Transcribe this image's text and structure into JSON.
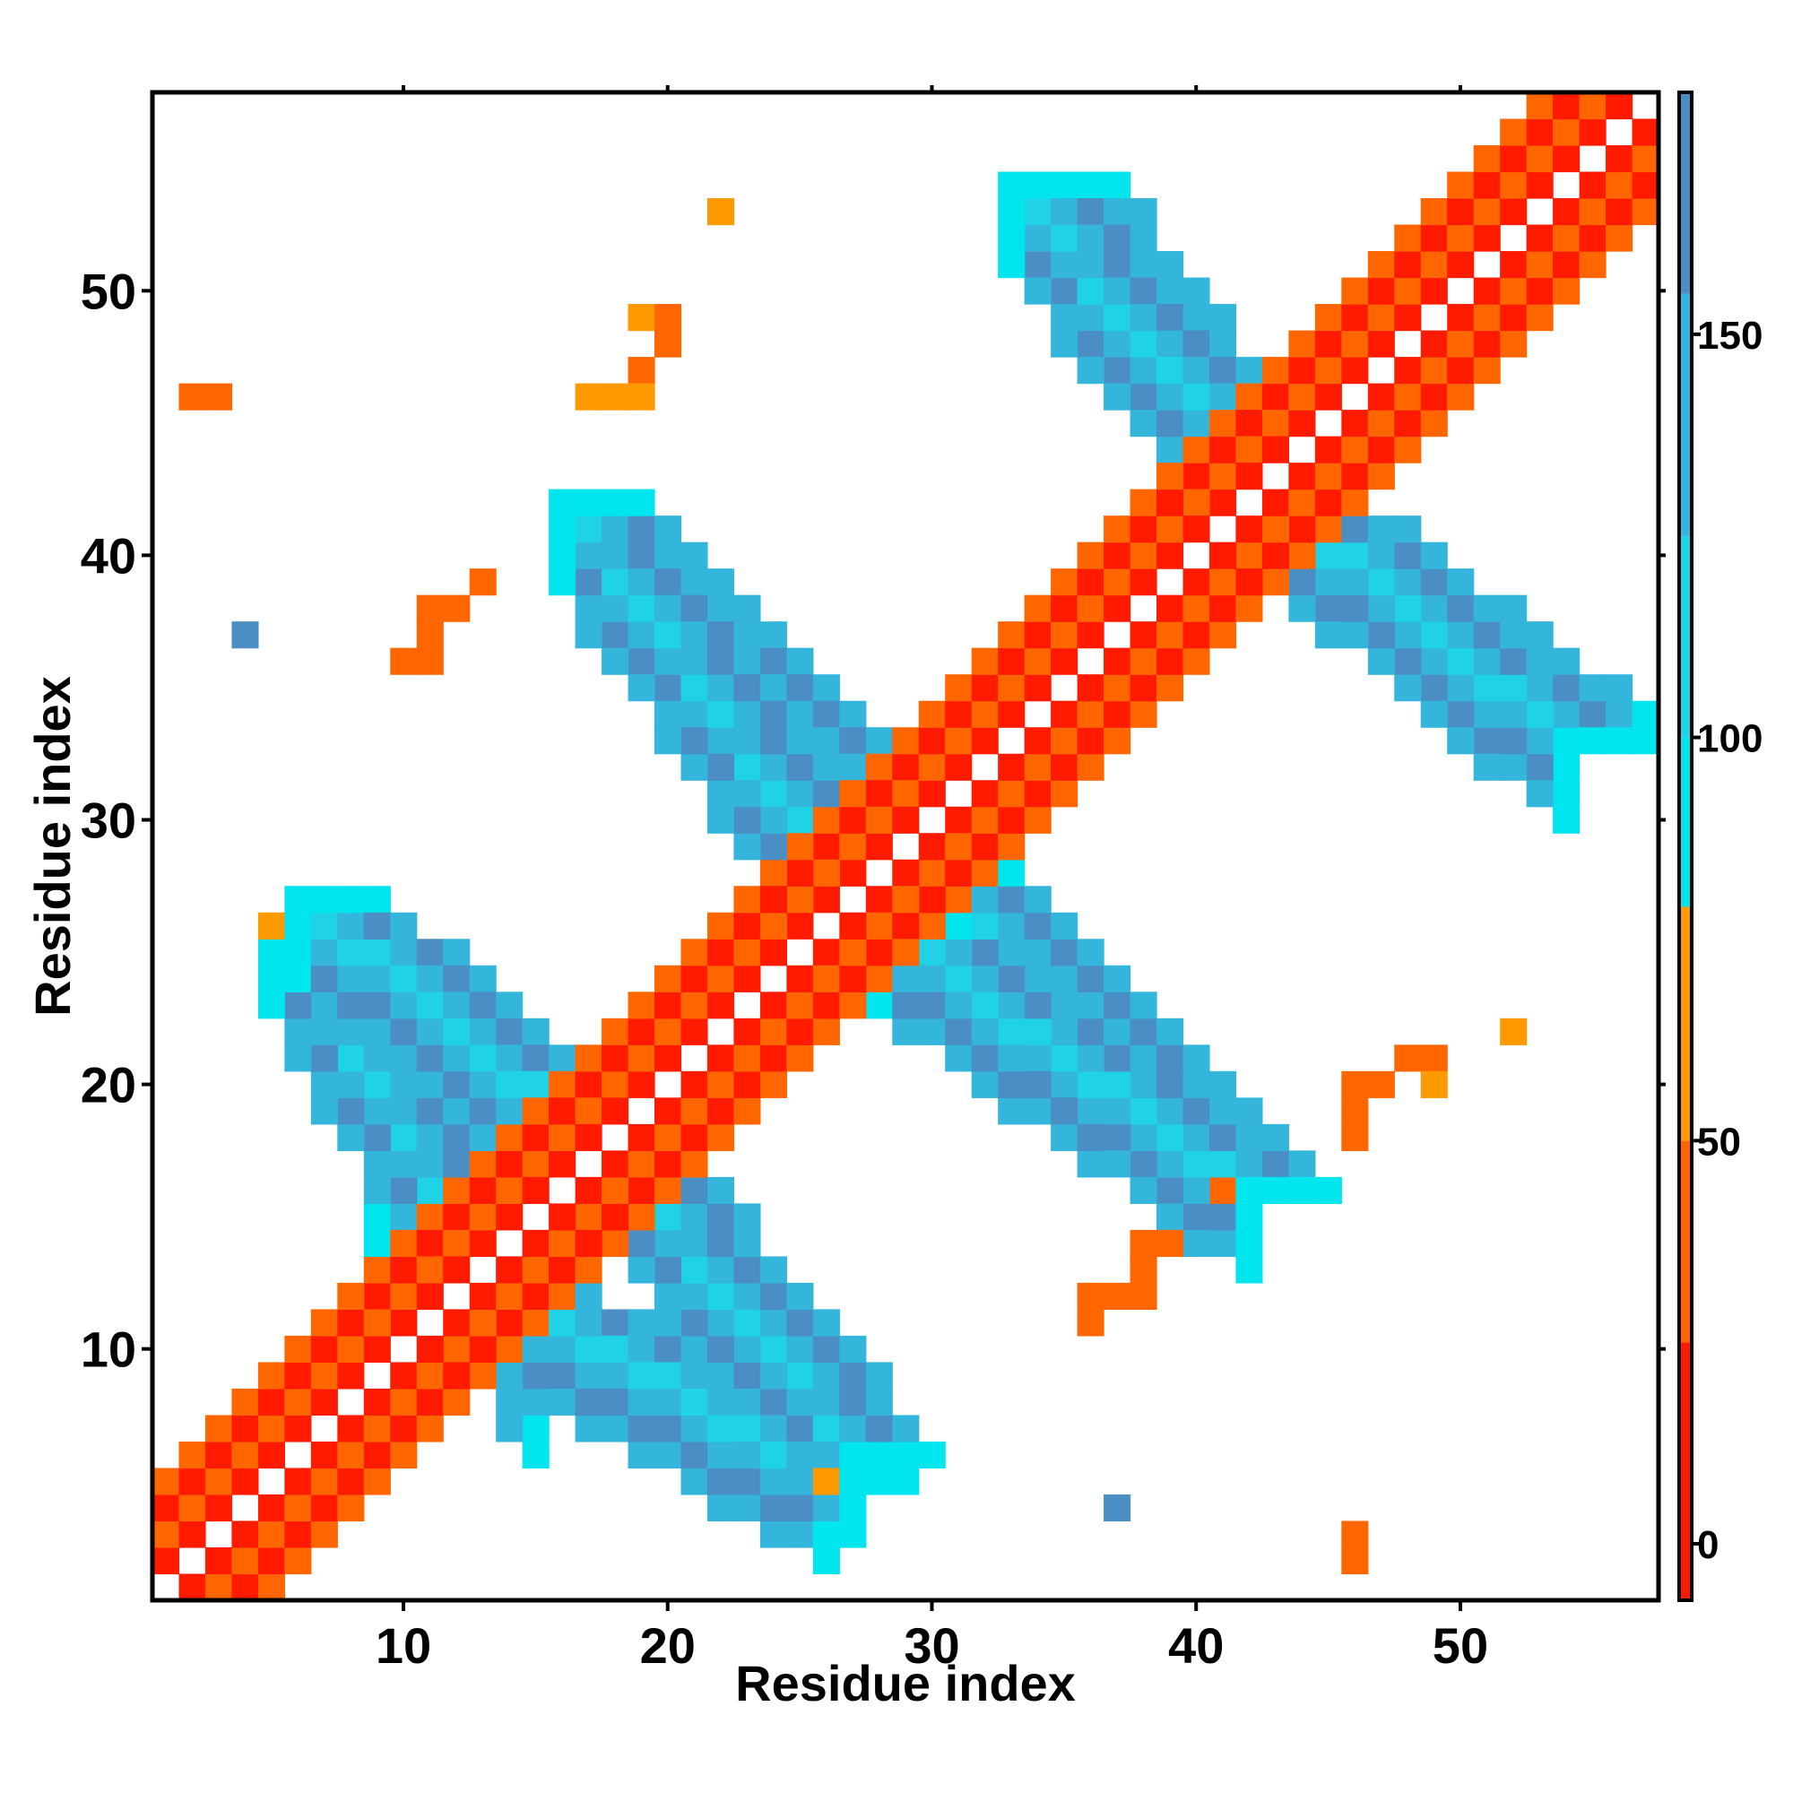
{
  "chart_data": {
    "type": "heatmap",
    "title": "",
    "xlabel": "Residue index",
    "ylabel": "Residue index",
    "xlim": [
      0.5,
      57.5
    ],
    "ylim": [
      0.5,
      57.5
    ],
    "x_ticks": [
      10,
      20,
      30,
      40,
      50
    ],
    "y_ticks": [
      10,
      20,
      30,
      40,
      50
    ],
    "grid": false,
    "legend": "none",
    "colorbar": {
      "placement": "right",
      "range": [
        -7,
        180
      ],
      "ticks": [
        0,
        50,
        100,
        150
      ],
      "bands": [
        {
          "from": -7,
          "to": 25,
          "color": "#ff1a00"
        },
        {
          "from": 25,
          "to": 50,
          "color": "#ff6600"
        },
        {
          "from": 50,
          "to": 79,
          "color": "#ff9900"
        },
        {
          "from": 79,
          "to": 100,
          "color": "#00e5ee"
        },
        {
          "from": 100,
          "to": 125,
          "color": "#1fd2e6"
        },
        {
          "from": 125,
          "to": 155,
          "color": "#33b5dc"
        },
        {
          "from": 155,
          "to": 180,
          "color": "#4a8ec4"
        },
        {
          "from": 180,
          "to": 187,
          "color": "#ffffff"
        }
      ]
    },
    "value_levels": {
      "red": 10,
      "orange": 40,
      "amber": 60,
      "cyan": 90,
      "lightblue": 115,
      "midblue": 140,
      "steelblue": 165
    },
    "diagonal_band": {
      "from": 1,
      "to": 57,
      "offsets": [
        {
          "d": 0,
          "level": "white"
        },
        {
          "d": 1,
          "level": "red"
        },
        {
          "d": 2,
          "level": "orange"
        },
        {
          "d": 3,
          "level": "red"
        },
        {
          "d": 4,
          "level": "orange"
        }
      ],
      "mid_gap": [
        16,
        18
      ]
    },
    "strands": [
      {
        "name": "",
        "start": [
          9,
          15
        ],
        "end": [
          26,
          5
        ],
        "width": 3
      },
      {
        "name": "",
        "start": [
          6,
          27
        ],
        "end": [
          18,
          17
        ],
        "width": 3
      },
      {
        "name": "",
        "start": [
          17,
          41
        ],
        "end": [
          28,
          30
        ],
        "width": 3
      },
      {
        "name": "",
        "start": [
          28,
          26
        ],
        "end": [
          42,
          16
        ],
        "width": 3
      },
      {
        "name": "",
        "start": [
          34,
          54
        ],
        "end": [
          42,
          43
        ],
        "width": 3
      },
      {
        "name": "",
        "start": [
          43,
          42
        ],
        "end": [
          54,
          33
        ],
        "width": 3
      }
    ],
    "isolated_cells": [
      {
        "x": 22,
        "y": 53,
        "level": "amber"
      },
      {
        "x": 19,
        "y": 49,
        "level": "amber"
      },
      {
        "x": 20,
        "y": 49,
        "level": "orange"
      },
      {
        "x": 20,
        "y": 48,
        "level": "orange"
      },
      {
        "x": 19,
        "y": 47,
        "level": "orange"
      },
      {
        "x": 17,
        "y": 46,
        "level": "amber"
      },
      {
        "x": 18,
        "y": 46,
        "level": "amber"
      },
      {
        "x": 19,
        "y": 46,
        "level": "amber"
      },
      {
        "x": 2,
        "y": 46,
        "level": "orange"
      },
      {
        "x": 3,
        "y": 46,
        "level": "orange"
      },
      {
        "x": 13,
        "y": 39,
        "level": "orange"
      },
      {
        "x": 11,
        "y": 38,
        "level": "orange"
      },
      {
        "x": 12,
        "y": 38,
        "level": "orange"
      },
      {
        "x": 11,
        "y": 37,
        "level": "orange"
      },
      {
        "x": 10,
        "y": 36,
        "level": "orange"
      },
      {
        "x": 11,
        "y": 36,
        "level": "orange"
      },
      {
        "x": 4,
        "y": 37,
        "level": "steelblue"
      },
      {
        "x": 5,
        "y": 26,
        "level": "amber"
      },
      {
        "x": 52,
        "y": 22,
        "level": "amber"
      },
      {
        "x": 48,
        "y": 21,
        "level": "orange"
      },
      {
        "x": 49,
        "y": 21,
        "level": "orange"
      },
      {
        "x": 46,
        "y": 20,
        "level": "orange"
      },
      {
        "x": 47,
        "y": 20,
        "level": "orange"
      },
      {
        "x": 49,
        "y": 20,
        "level": "amber"
      },
      {
        "x": 46,
        "y": 19,
        "level": "orange"
      },
      {
        "x": 46,
        "y": 18,
        "level": "orange"
      },
      {
        "x": 41,
        "y": 16,
        "level": "orange"
      },
      {
        "x": 38,
        "y": 14,
        "level": "orange"
      },
      {
        "x": 39,
        "y": 14,
        "level": "orange"
      },
      {
        "x": 38,
        "y": 13,
        "level": "orange"
      },
      {
        "x": 36,
        "y": 12,
        "level": "orange"
      },
      {
        "x": 37,
        "y": 12,
        "level": "orange"
      },
      {
        "x": 38,
        "y": 12,
        "level": "orange"
      },
      {
        "x": 36,
        "y": 11,
        "level": "orange"
      },
      {
        "x": 26,
        "y": 5,
        "level": "amber"
      },
      {
        "x": 37,
        "y": 4,
        "level": "steelblue"
      },
      {
        "x": 46,
        "y": 3,
        "level": "orange"
      },
      {
        "x": 46,
        "y": 2,
        "level": "orange"
      }
    ]
  }
}
